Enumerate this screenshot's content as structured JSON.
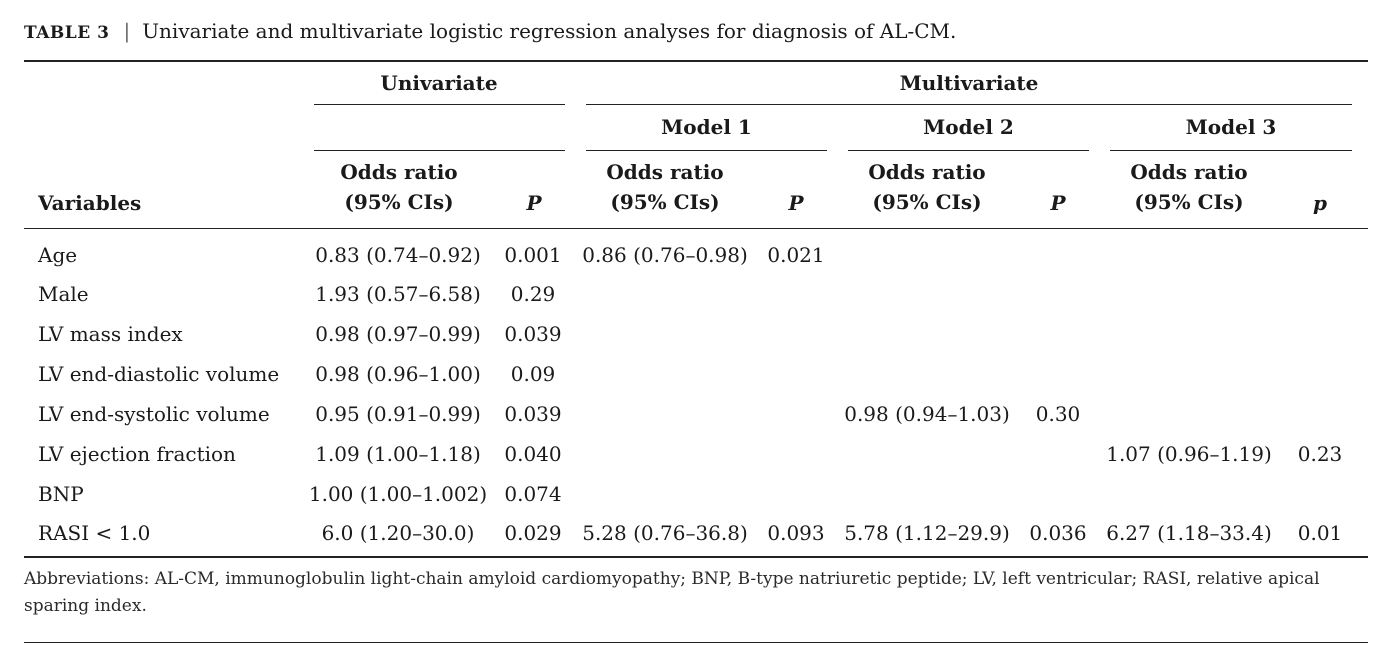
{
  "caption": {
    "label": "TABLE 3",
    "separator": "|",
    "text": "Univariate and multivariate logistic regression analyses for diagnosis of AL-CM."
  },
  "header": {
    "univariate": "Univariate",
    "multivariate": "Multivariate",
    "model1": "Model 1",
    "model2": "Model 2",
    "model3": "Model 3",
    "variables": "Variables",
    "or_line1": "Odds ratio",
    "or_line2": "(95% CIs)",
    "p_upper": "P",
    "p_lower": "p"
  },
  "rows": [
    {
      "variable": "Age",
      "uni_or": "0.83 (0.74–0.92)",
      "uni_p": "0.001",
      "m1_or": "0.86 (0.76–0.98)",
      "m1_p": "0.021",
      "m2_or": "",
      "m2_p": "",
      "m3_or": "",
      "m3_p": ""
    },
    {
      "variable": "Male",
      "uni_or": "1.93 (0.57–6.58)",
      "uni_p": "0.29",
      "m1_or": "",
      "m1_p": "",
      "m2_or": "",
      "m2_p": "",
      "m3_or": "",
      "m3_p": ""
    },
    {
      "variable": "LV mass index",
      "uni_or": "0.98 (0.97–0.99)",
      "uni_p": "0.039",
      "m1_or": "",
      "m1_p": "",
      "m2_or": "",
      "m2_p": "",
      "m3_or": "",
      "m3_p": ""
    },
    {
      "variable": "LV end-diastolic volume",
      "uni_or": "0.98 (0.96–1.00)",
      "uni_p": "0.09",
      "m1_or": "",
      "m1_p": "",
      "m2_or": "",
      "m2_p": "",
      "m3_or": "",
      "m3_p": ""
    },
    {
      "variable": "LV end-systolic volume",
      "uni_or": "0.95 (0.91–0.99)",
      "uni_p": "0.039",
      "m1_or": "",
      "m1_p": "",
      "m2_or": "0.98 (0.94–1.03)",
      "m2_p": "0.30",
      "m3_or": "",
      "m3_p": ""
    },
    {
      "variable": "LV ejection fraction",
      "uni_or": "1.09 (1.00–1.18)",
      "uni_p": "0.040",
      "m1_or": "",
      "m1_p": "",
      "m2_or": "",
      "m2_p": "",
      "m3_or": "1.07 (0.96–1.19)",
      "m3_p": "0.23"
    },
    {
      "variable": "BNP",
      "uni_or": "1.00 (1.00–1.002)",
      "uni_p": "0.074",
      "m1_or": "",
      "m1_p": "",
      "m2_or": "",
      "m2_p": "",
      "m3_or": "",
      "m3_p": ""
    },
    {
      "variable": "RASI < 1.0",
      "uni_or": "6.0 (1.20–30.0)",
      "uni_p": "0.029",
      "m1_or": "5.28 (0.76–36.8)",
      "m1_p": "0.093",
      "m2_or": "5.78 (1.12–29.9)",
      "m2_p": "0.036",
      "m3_or": "6.27 (1.18–33.4)",
      "m3_p": "0.01"
    }
  ],
  "footnote": "Abbreviations: AL-CM, immunoglobulin light-chain amyloid cardiomyopathy; BNP, B-type natriuretic peptide; LV, left ventricular; RASI, relative apical sparing index."
}
